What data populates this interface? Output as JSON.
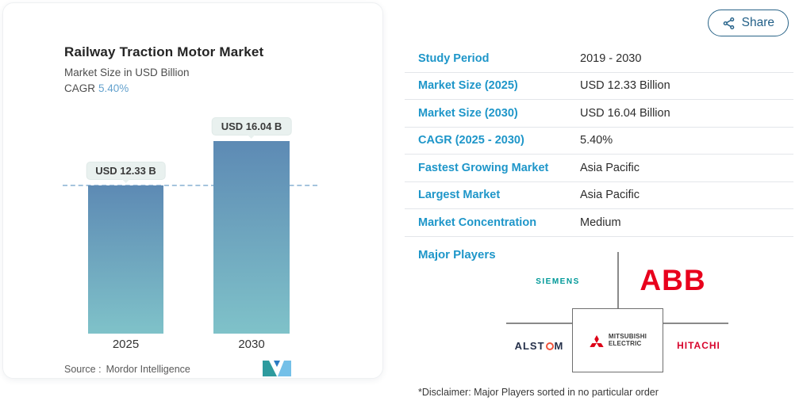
{
  "header": {
    "share_label": "Share"
  },
  "chart_card": {
    "title": "Railway Traction Motor Market",
    "subtitle": "Market Size in USD Billion",
    "cagr_label": "CAGR",
    "cagr_value": "5.40%",
    "source_prefix": "Source :",
    "source_name": "Mordor Intelligence"
  },
  "chart_data": {
    "type": "bar",
    "title": "Railway Traction Motor Market",
    "subtitle": "Market Size in USD Billion",
    "categories": [
      "2025",
      "2030"
    ],
    "values": [
      12.33,
      16.04
    ],
    "bar_value_labels": [
      "USD 12.33 B",
      "USD 16.04 B"
    ],
    "unit": "USD Billion",
    "cagr_pct": 5.4,
    "ylim": [
      0,
      18
    ],
    "grid": false,
    "legend": false,
    "reference_line": {
      "style": "dashed",
      "at_value": 12.33
    },
    "bar_gradient": [
      "#5d8ab4",
      "#7fc2c9"
    ],
    "source": "Mordor Intelligence"
  },
  "stats_table": {
    "rows": [
      {
        "label": "Study Period",
        "value": "2019 - 2030"
      },
      {
        "label": "Market Size (2025)",
        "value": "USD 12.33 Billion"
      },
      {
        "label": "Market Size (2030)",
        "value": "USD 16.04 Billion"
      },
      {
        "label": "CAGR (2025 - 2030)",
        "value": "5.40%"
      },
      {
        "label": "Fastest Growing Market",
        "value": "Asia Pacific"
      },
      {
        "label": "Largest Market",
        "value": "Asia Pacific"
      },
      {
        "label": "Market Concentration",
        "value": "Medium"
      }
    ]
  },
  "major_players": {
    "label": "Major Players",
    "players": [
      "Siemens",
      "ABB",
      "Alstom",
      "Mitsubishi Electric",
      "Hitachi"
    ],
    "disclaimer": "*Disclaimer: Major Players sorted in no particular order",
    "logos": {
      "siemens": "SIEMENS",
      "abb": "ABB",
      "alstom_pre": "ALST",
      "alstom_post": "M",
      "mitsubishi_line1": "MITSUBISHI",
      "mitsubishi_line2": "ELECTRIC",
      "hitachi": "HITACHI"
    }
  },
  "colors": {
    "accent_blue": "#1e96c9",
    "cagr_blue": "#64a2ce",
    "share_blue": "#236088",
    "siemens_teal": "#009999",
    "abb_red": "#e8001c",
    "alstom_navy": "#25304a",
    "alstom_orange": "#f0543c",
    "hitachi_red": "#d7052d",
    "mitsubishi_red": "#dd0016",
    "dashed_line": "#a5c4dd"
  }
}
